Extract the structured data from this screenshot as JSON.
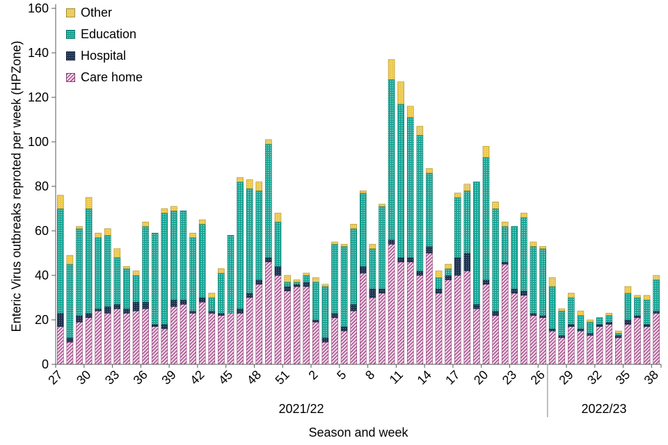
{
  "chart_data": {
    "type": "bar",
    "subtype": "stacked",
    "title": "",
    "ylabel": "Enteric Virus outbreaks reproted per week (HPZone)",
    "xlabel": "Season and week",
    "ylim": [
      0,
      160
    ],
    "yticks": [
      0,
      20,
      40,
      60,
      80,
      100,
      120,
      140,
      160
    ],
    "grid": false,
    "legend_position": "top-left",
    "legend_order": [
      "Other",
      "Education",
      "Hospital",
      "Care home"
    ],
    "x_tick_every": 3,
    "season_labels": [
      {
        "label": "2021/22",
        "from_index": 0,
        "to_index": 51
      },
      {
        "label": "2022/23",
        "from_index": 52,
        "to_index": 63
      }
    ],
    "categories": [
      "27",
      "28",
      "29",
      "30",
      "31",
      "32",
      "33",
      "34",
      "35",
      "36",
      "37",
      "38",
      "39",
      "40",
      "41",
      "42",
      "43",
      "44",
      "45",
      "46",
      "47",
      "48",
      "49",
      "50",
      "51",
      "52",
      "1",
      "2",
      "3",
      "4",
      "5",
      "6",
      "7",
      "8",
      "9",
      "10",
      "11",
      "12",
      "13",
      "14",
      "15",
      "16",
      "17",
      "18",
      "19",
      "20",
      "21",
      "22",
      "23",
      "24",
      "25",
      "26",
      "27",
      "28",
      "29",
      "30",
      "31",
      "32",
      "33",
      "34",
      "35",
      "36",
      "37",
      "38"
    ],
    "series": [
      {
        "name": "Care home",
        "color": "#a8538f",
        "pattern": "diagonal-hatch",
        "values": [
          17,
          10,
          19,
          21,
          24,
          23,
          25,
          23,
          24,
          25,
          17,
          16,
          26,
          27,
          23,
          28,
          23,
          22,
          23,
          23,
          30,
          36,
          46,
          40,
          33,
          35,
          35,
          19,
          10,
          21,
          15,
          24,
          41,
          30,
          32,
          54,
          46,
          46,
          40,
          50,
          32,
          38,
          40,
          42,
          25,
          36,
          22,
          45,
          32,
          31,
          22,
          21,
          15,
          12,
          17,
          15,
          13,
          17,
          18,
          12,
          18,
          21,
          17,
          23
        ]
      },
      {
        "name": "Hospital",
        "color": "#1e3250",
        "pattern": "dots",
        "values": [
          6,
          2,
          3,
          2,
          1,
          3,
          2,
          2,
          4,
          3,
          1,
          2,
          3,
          2,
          1,
          2,
          1,
          1,
          0,
          2,
          2,
          2,
          2,
          4,
          2,
          1,
          2,
          1,
          2,
          2,
          2,
          3,
          3,
          4,
          2,
          2,
          2,
          2,
          2,
          3,
          2,
          2,
          8,
          8,
          2,
          2,
          2,
          1,
          2,
          2,
          1,
          1,
          1,
          1,
          1,
          1,
          1,
          1,
          1,
          1,
          2,
          1,
          1,
          1
        ]
      },
      {
        "name": "Education",
        "color": "#13a393",
        "pattern": "dots",
        "values": [
          47,
          33,
          39,
          47,
          32,
          32,
          21,
          18,
          12,
          34,
          41,
          50,
          40,
          40,
          33,
          33,
          6,
          18,
          35,
          57,
          47,
          40,
          51,
          20,
          2,
          1,
          3,
          17,
          23,
          31,
          36,
          34,
          33,
          18,
          37,
          72,
          69,
          63,
          61,
          33,
          5,
          3,
          27,
          28,
          55,
          55,
          46,
          16,
          28,
          33,
          30,
          30,
          19,
          11,
          12,
          6,
          5,
          3,
          3,
          1,
          12,
          8,
          11,
          14
        ]
      },
      {
        "name": "Other",
        "color": "#ecc94f",
        "pattern": "dots",
        "values": [
          6,
          4,
          1,
          5,
          2,
          3,
          4,
          1,
          2,
          2,
          0,
          2,
          2,
          0,
          2,
          2,
          2,
          2,
          0,
          2,
          4,
          4,
          2,
          4,
          3,
          1,
          1,
          2,
          1,
          1,
          1,
          2,
          1,
          2,
          1,
          9,
          10,
          5,
          4,
          2,
          3,
          2,
          2,
          3,
          0,
          5,
          3,
          2,
          0,
          2,
          2,
          1,
          4,
          1,
          2,
          2,
          1,
          0,
          1,
          1,
          3,
          1,
          2,
          2
        ]
      }
    ]
  }
}
